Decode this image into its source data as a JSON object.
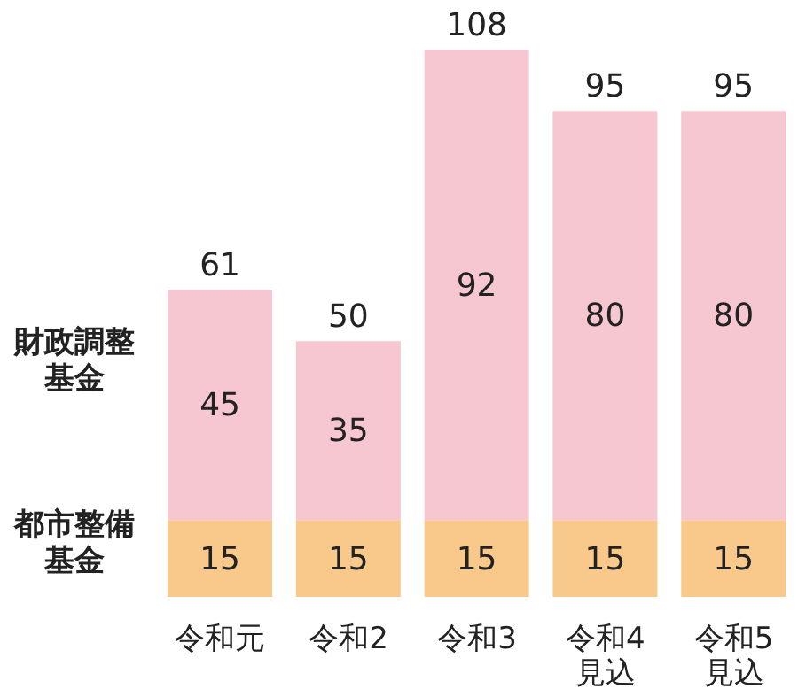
{
  "chart_data": {
    "type": "bar",
    "stacked": true,
    "data_labels": true,
    "legend": "left",
    "categories": [
      "令和元",
      "令和2",
      "令和3",
      "令和4\n見込",
      "令和5\n見込"
    ],
    "series": [
      {
        "name": "都市整備基金",
        "color": "#f9c98c",
        "values": [
          15,
          15,
          15,
          15,
          15
        ]
      },
      {
        "name": "財政調整基金",
        "color": "#f7c7d1",
        "values": [
          45,
          35,
          92,
          80,
          80
        ]
      }
    ],
    "totals": [
      "61",
      "50",
      "108",
      "95",
      "95"
    ]
  }
}
